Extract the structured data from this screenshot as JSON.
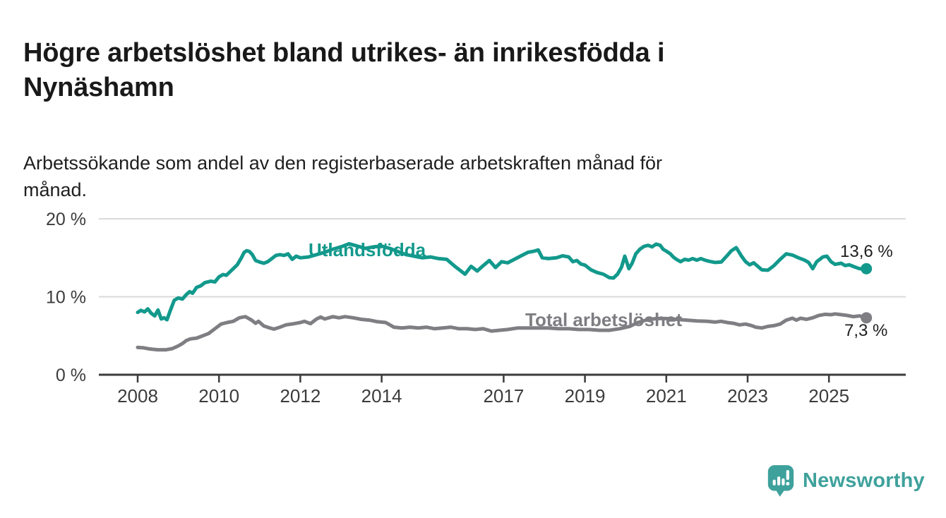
{
  "title": {
    "lines": [
      "Högre arbetslöshet bland utrikes- än inrikesfödda i",
      "Nynäshamn"
    ]
  },
  "subtitle": {
    "lines": [
      "Arbetssökande som andel av den registerbaserade arbetskraften månad för",
      "månad."
    ]
  },
  "chart_data": {
    "type": "line",
    "grid": "horizontal",
    "legend_position": "inline-labels",
    "x_axis": {
      "tick_years": [
        2008,
        2010,
        2012,
        2014,
        2017,
        2019,
        2021,
        2023,
        2025
      ],
      "range": [
        2008,
        2025.92
      ]
    },
    "y_axis": {
      "unit": "%",
      "range": [
        0,
        20
      ],
      "tick_labels": [
        {
          "label": "20 %",
          "value": 20
        },
        {
          "label": "10 %",
          "value": 10
        },
        {
          "label": "0 %",
          "value": 0
        }
      ]
    },
    "colors": {
      "axis": "#3b3b3b",
      "gridline": "#dadada",
      "tick_text": "#3c3c3c"
    },
    "series": [
      {
        "name": "Utlandsfödda",
        "slug": "utlandsfodda",
        "color": "#12998c",
        "end_label": "13,6 %",
        "end_value": 13.6,
        "points": [
          [
            2008.0,
            8.0
          ],
          [
            2008.08,
            8.25
          ],
          [
            2008.17,
            8.05
          ],
          [
            2008.25,
            8.45
          ],
          [
            2008.33,
            7.9
          ],
          [
            2008.42,
            7.55
          ],
          [
            2008.5,
            8.3
          ],
          [
            2008.58,
            7.15
          ],
          [
            2008.65,
            7.3
          ],
          [
            2008.72,
            7.05
          ],
          [
            2008.8,
            8.2
          ],
          [
            2008.9,
            9.55
          ],
          [
            2009.0,
            9.85
          ],
          [
            2009.1,
            9.7
          ],
          [
            2009.2,
            10.3
          ],
          [
            2009.28,
            10.65
          ],
          [
            2009.35,
            10.45
          ],
          [
            2009.45,
            11.2
          ],
          [
            2009.55,
            11.4
          ],
          [
            2009.65,
            11.8
          ],
          [
            2009.8,
            12.0
          ],
          [
            2009.9,
            11.9
          ],
          [
            2010.0,
            12.55
          ],
          [
            2010.1,
            12.85
          ],
          [
            2010.18,
            12.75
          ],
          [
            2010.26,
            13.15
          ],
          [
            2010.35,
            13.6
          ],
          [
            2010.45,
            14.1
          ],
          [
            2010.55,
            15.0
          ],
          [
            2010.62,
            15.7
          ],
          [
            2010.68,
            15.9
          ],
          [
            2010.75,
            15.8
          ],
          [
            2010.82,
            15.4
          ],
          [
            2010.9,
            14.65
          ],
          [
            2011.0,
            14.45
          ],
          [
            2011.1,
            14.3
          ],
          [
            2011.2,
            14.5
          ],
          [
            2011.3,
            14.9
          ],
          [
            2011.4,
            15.3
          ],
          [
            2011.5,
            15.4
          ],
          [
            2011.6,
            15.3
          ],
          [
            2011.7,
            15.5
          ],
          [
            2011.8,
            14.8
          ],
          [
            2011.9,
            15.2
          ],
          [
            2012.0,
            15.0
          ],
          [
            2012.2,
            15.1
          ],
          [
            2012.4,
            15.4
          ],
          [
            2012.6,
            15.7
          ],
          [
            2012.8,
            16.1
          ],
          [
            2013.0,
            16.4
          ],
          [
            2013.2,
            16.8
          ],
          [
            2013.4,
            16.5
          ],
          [
            2013.6,
            16.2
          ],
          [
            2013.8,
            16.4
          ],
          [
            2014.0,
            16.5
          ],
          [
            2014.2,
            16.2
          ],
          [
            2014.4,
            15.8
          ],
          [
            2014.6,
            15.4
          ],
          [
            2014.8,
            15.2
          ],
          [
            2015.0,
            15.0
          ],
          [
            2015.2,
            15.1
          ],
          [
            2015.4,
            14.9
          ],
          [
            2015.6,
            14.8
          ],
          [
            2015.8,
            13.9
          ],
          [
            2015.95,
            13.3
          ],
          [
            2016.05,
            12.9
          ],
          [
            2016.2,
            13.9
          ],
          [
            2016.35,
            13.3
          ],
          [
            2016.5,
            14.0
          ],
          [
            2016.65,
            14.65
          ],
          [
            2016.8,
            13.75
          ],
          [
            2016.95,
            14.5
          ],
          [
            2017.1,
            14.35
          ],
          [
            2017.3,
            14.9
          ],
          [
            2017.45,
            15.3
          ],
          [
            2017.6,
            15.7
          ],
          [
            2017.75,
            15.85
          ],
          [
            2017.85,
            16.0
          ],
          [
            2017.95,
            15.0
          ],
          [
            2018.1,
            14.9
          ],
          [
            2018.3,
            15.0
          ],
          [
            2018.45,
            15.25
          ],
          [
            2018.6,
            15.1
          ],
          [
            2018.7,
            14.5
          ],
          [
            2018.8,
            14.65
          ],
          [
            2018.9,
            14.2
          ],
          [
            2019.0,
            14.05
          ],
          [
            2019.15,
            13.45
          ],
          [
            2019.3,
            13.1
          ],
          [
            2019.45,
            12.9
          ],
          [
            2019.6,
            12.45
          ],
          [
            2019.7,
            12.4
          ],
          [
            2019.8,
            12.9
          ],
          [
            2019.9,
            13.8
          ],
          [
            2019.98,
            15.2
          ],
          [
            2020.08,
            13.6
          ],
          [
            2020.16,
            14.3
          ],
          [
            2020.25,
            15.5
          ],
          [
            2020.35,
            16.1
          ],
          [
            2020.45,
            16.45
          ],
          [
            2020.55,
            16.6
          ],
          [
            2020.65,
            16.4
          ],
          [
            2020.75,
            16.75
          ],
          [
            2020.85,
            16.6
          ],
          [
            2020.92,
            16.1
          ],
          [
            2021.0,
            15.85
          ],
          [
            2021.1,
            15.5
          ],
          [
            2021.17,
            15.1
          ],
          [
            2021.25,
            14.8
          ],
          [
            2021.35,
            14.5
          ],
          [
            2021.45,
            14.8
          ],
          [
            2021.55,
            14.7
          ],
          [
            2021.65,
            14.9
          ],
          [
            2021.75,
            14.7
          ],
          [
            2021.85,
            14.9
          ],
          [
            2021.95,
            14.7
          ],
          [
            2022.05,
            14.55
          ],
          [
            2022.2,
            14.4
          ],
          [
            2022.35,
            14.45
          ],
          [
            2022.5,
            15.3
          ],
          [
            2022.6,
            15.9
          ],
          [
            2022.72,
            16.3
          ],
          [
            2022.85,
            15.2
          ],
          [
            2022.95,
            14.5
          ],
          [
            2023.05,
            14.1
          ],
          [
            2023.15,
            14.35
          ],
          [
            2023.25,
            13.9
          ],
          [
            2023.35,
            13.45
          ],
          [
            2023.5,
            13.4
          ],
          [
            2023.65,
            14.0
          ],
          [
            2023.8,
            14.8
          ],
          [
            2023.95,
            15.5
          ],
          [
            2024.1,
            15.35
          ],
          [
            2024.25,
            15.0
          ],
          [
            2024.4,
            14.7
          ],
          [
            2024.5,
            14.4
          ],
          [
            2024.6,
            13.6
          ],
          [
            2024.7,
            14.5
          ],
          [
            2024.85,
            15.1
          ],
          [
            2024.95,
            15.2
          ],
          [
            2025.05,
            14.5
          ],
          [
            2025.15,
            14.15
          ],
          [
            2025.3,
            14.3
          ],
          [
            2025.4,
            14.0
          ],
          [
            2025.5,
            14.1
          ],
          [
            2025.62,
            13.85
          ],
          [
            2025.75,
            13.6
          ],
          [
            2025.92,
            13.6
          ]
        ]
      },
      {
        "name": "Total arbetslöshet",
        "slug": "total-arbetsloshet",
        "color": "#7e7e83",
        "end_label": "7,3 %",
        "end_value": 7.3,
        "points": [
          [
            2008.0,
            3.5
          ],
          [
            2008.15,
            3.45
          ],
          [
            2008.3,
            3.3
          ],
          [
            2008.5,
            3.2
          ],
          [
            2008.7,
            3.2
          ],
          [
            2008.85,
            3.35
          ],
          [
            2009.0,
            3.7
          ],
          [
            2009.1,
            4.0
          ],
          [
            2009.2,
            4.4
          ],
          [
            2009.3,
            4.6
          ],
          [
            2009.45,
            4.7
          ],
          [
            2009.6,
            5.0
          ],
          [
            2009.75,
            5.3
          ],
          [
            2009.9,
            5.9
          ],
          [
            2010.05,
            6.5
          ],
          [
            2010.2,
            6.7
          ],
          [
            2010.35,
            6.85
          ],
          [
            2010.5,
            7.3
          ],
          [
            2010.65,
            7.45
          ],
          [
            2010.8,
            7.0
          ],
          [
            2010.9,
            6.6
          ],
          [
            2010.97,
            6.85
          ],
          [
            2011.1,
            6.25
          ],
          [
            2011.25,
            6.0
          ],
          [
            2011.35,
            5.85
          ],
          [
            2011.5,
            6.1
          ],
          [
            2011.65,
            6.4
          ],
          [
            2011.85,
            6.55
          ],
          [
            2012.0,
            6.7
          ],
          [
            2012.1,
            6.85
          ],
          [
            2012.25,
            6.55
          ],
          [
            2012.4,
            7.15
          ],
          [
            2012.5,
            7.4
          ],
          [
            2012.6,
            7.15
          ],
          [
            2012.8,
            7.45
          ],
          [
            2012.95,
            7.3
          ],
          [
            2013.1,
            7.45
          ],
          [
            2013.3,
            7.3
          ],
          [
            2013.5,
            7.1
          ],
          [
            2013.7,
            7.0
          ],
          [
            2013.9,
            6.8
          ],
          [
            2014.1,
            6.7
          ],
          [
            2014.3,
            6.1
          ],
          [
            2014.5,
            6.0
          ],
          [
            2014.7,
            6.1
          ],
          [
            2014.9,
            6.0
          ],
          [
            2015.1,
            6.1
          ],
          [
            2015.3,
            5.9
          ],
          [
            2015.5,
            6.0
          ],
          [
            2015.7,
            6.1
          ],
          [
            2015.9,
            5.9
          ],
          [
            2016.1,
            5.9
          ],
          [
            2016.3,
            5.8
          ],
          [
            2016.5,
            5.9
          ],
          [
            2016.7,
            5.6
          ],
          [
            2016.9,
            5.7
          ],
          [
            2017.1,
            5.8
          ],
          [
            2017.35,
            6.0
          ],
          [
            2017.6,
            6.0
          ],
          [
            2017.85,
            6.0
          ],
          [
            2018.1,
            6.0
          ],
          [
            2018.35,
            5.9
          ],
          [
            2018.6,
            5.9
          ],
          [
            2018.85,
            5.8
          ],
          [
            2019.1,
            5.8
          ],
          [
            2019.35,
            5.7
          ],
          [
            2019.6,
            5.7
          ],
          [
            2019.85,
            5.9
          ],
          [
            2020.1,
            6.2
          ],
          [
            2020.3,
            6.7
          ],
          [
            2020.5,
            7.0
          ],
          [
            2020.75,
            7.2
          ],
          [
            2021.0,
            7.2
          ],
          [
            2021.25,
            7.1
          ],
          [
            2021.5,
            7.0
          ],
          [
            2021.75,
            6.9
          ],
          [
            2022.0,
            6.85
          ],
          [
            2022.2,
            6.75
          ],
          [
            2022.35,
            6.85
          ],
          [
            2022.5,
            6.7
          ],
          [
            2022.65,
            6.6
          ],
          [
            2022.8,
            6.4
          ],
          [
            2022.95,
            6.5
          ],
          [
            2023.1,
            6.3
          ],
          [
            2023.2,
            6.1
          ],
          [
            2023.35,
            6.0
          ],
          [
            2023.5,
            6.2
          ],
          [
            2023.65,
            6.3
          ],
          [
            2023.8,
            6.5
          ],
          [
            2023.95,
            7.0
          ],
          [
            2024.1,
            7.25
          ],
          [
            2024.2,
            7.0
          ],
          [
            2024.3,
            7.25
          ],
          [
            2024.45,
            7.1
          ],
          [
            2024.6,
            7.3
          ],
          [
            2024.75,
            7.6
          ],
          [
            2024.9,
            7.75
          ],
          [
            2025.05,
            7.7
          ],
          [
            2025.15,
            7.8
          ],
          [
            2025.3,
            7.7
          ],
          [
            2025.45,
            7.6
          ],
          [
            2025.6,
            7.45
          ],
          [
            2025.75,
            7.55
          ],
          [
            2025.92,
            7.3
          ]
        ]
      }
    ]
  },
  "branding": {
    "logo_text": "Newsworthy",
    "logo_color": "#3fa19c",
    "icon": "bar-chart-speech-bubble"
  }
}
